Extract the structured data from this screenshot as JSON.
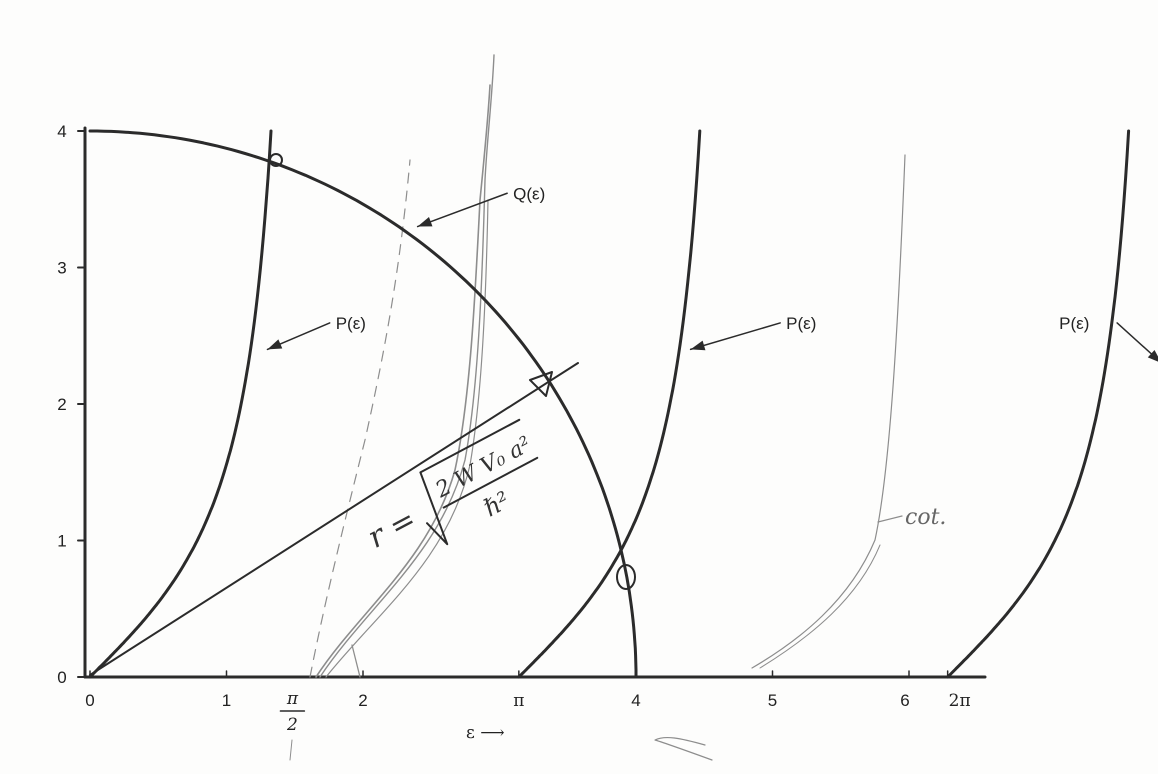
{
  "chart_data": {
    "type": "line",
    "title": "",
    "xlabel": "ε ⟶",
    "ylabel": "",
    "xlim": [
      0,
      6.3
    ],
    "ylim": [
      0,
      4
    ],
    "grid": false,
    "x_ticks": [
      {
        "value": 0,
        "label": "0"
      },
      {
        "value": 1,
        "label": "1"
      },
      {
        "value": 2,
        "label": "2"
      },
      {
        "value": 3.1416,
        "label": "π"
      },
      {
        "value": 4,
        "label": "4"
      },
      {
        "value": 5,
        "label": "5"
      },
      {
        "value": 6,
        "label": "6"
      },
      {
        "value": 6.2832,
        "label": "2π"
      }
    ],
    "y_ticks": [
      {
        "value": 0,
        "label": "0"
      },
      {
        "value": 1,
        "label": "1"
      },
      {
        "value": 2,
        "label": "2"
      },
      {
        "value": 3,
        "label": "3"
      },
      {
        "value": 4,
        "label": "4"
      }
    ],
    "x_special": {
      "value": 1.5708,
      "num": "π",
      "den": "2"
    },
    "series": [
      {
        "name": "Q(ε)",
        "kind": "quarter-circle",
        "radius": 4,
        "label_at": [
          3.1,
          3.5
        ],
        "arrow_to": [
          2.4,
          3.3
        ]
      },
      {
        "name": "P(ε)",
        "kind": "tan",
        "offset": 0,
        "label_at": [
          1.8,
          2.55
        ],
        "arrow_to": [
          1.3,
          2.4
        ]
      },
      {
        "name": "P(ε)",
        "kind": "tan",
        "offset": 3.1416,
        "label_at": [
          5.1,
          2.55
        ],
        "arrow_to": [
          4.4,
          2.4
        ]
      },
      {
        "name": "P(ε)",
        "kind": "tan",
        "offset": 6.2832,
        "label_at": [
          7.1,
          2.55
        ],
        "arrow_to": [
          7.85,
          2.3
        ]
      }
    ],
    "annotations": {
      "formula": {
        "lhs": "r =",
        "num": "2 W V₀ a²",
        "den": "ℏ²"
      },
      "cot_label": "cot."
    }
  }
}
